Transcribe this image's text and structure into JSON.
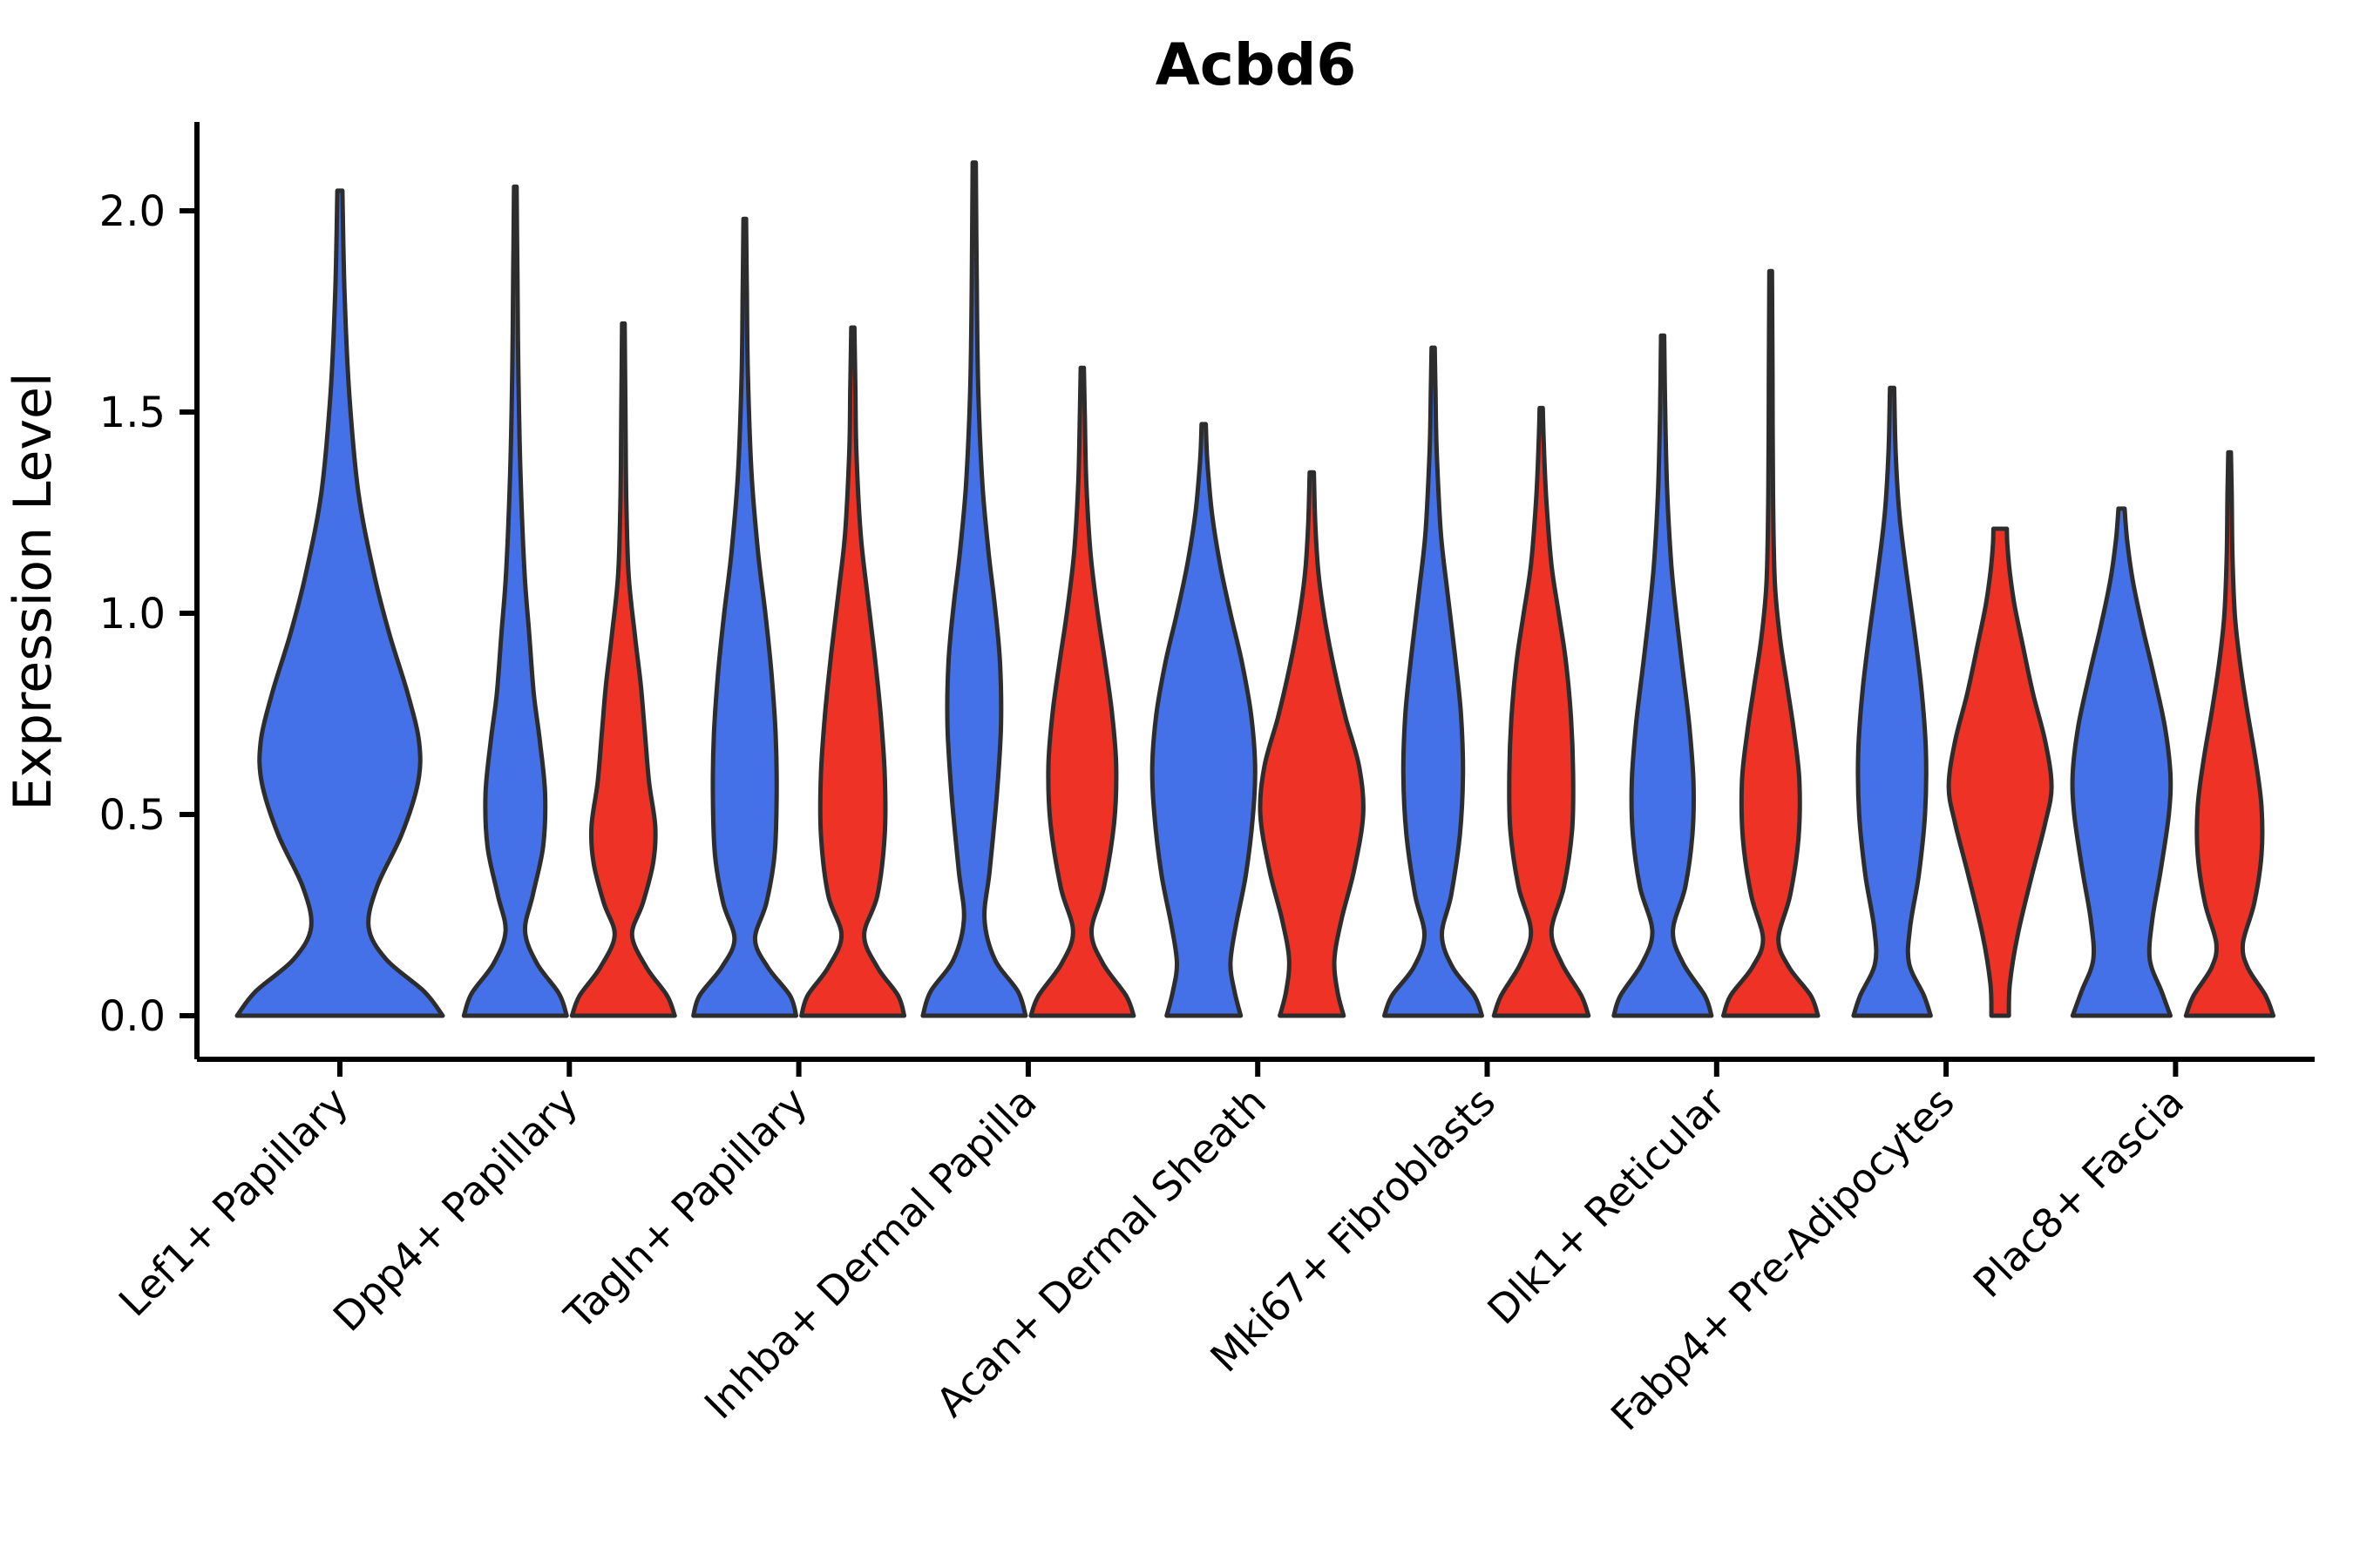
{
  "title": "Acbd6",
  "y_axis": {
    "label": "Expression Level",
    "ticks": [
      {
        "value": 2.0,
        "label": "2.0"
      },
      {
        "value": 1.5,
        "label": "1.5"
      },
      {
        "value": 1.0,
        "label": "1.0"
      },
      {
        "value": 0.5,
        "label": "0.5"
      },
      {
        "value": 0.0,
        "label": "0.0"
      }
    ]
  },
  "x_axis": {
    "categories": [
      "Lef1+ Papillary",
      "Dpp4+ Papillary",
      "Tagln+ Papillary",
      "Inhba+ Dermal Papilla",
      "Acan+ Dermal Sheath",
      "Mki67+ Fibroblasts",
      "Dlk1+ Reticular",
      "Fabp4+ Pre-Adipocytes",
      "Plac8+ Fascia"
    ]
  },
  "colors": {
    "blue": "#4470E8",
    "red": "#EE3326",
    "outline": "#2D2D2D",
    "axis": "#000000"
  },
  "chart_data": {
    "type": "violin",
    "title": "Acbd6",
    "xlabel": "",
    "ylabel": "Expression Level",
    "ylim": [
      -0.11,
      2.22
    ],
    "yticks": [
      0.0,
      0.5,
      1.0,
      1.5,
      2.0
    ],
    "grid": false,
    "legend": null,
    "categories": [
      "Lef1+ Papillary",
      "Dpp4+ Papillary",
      "Tagln+ Papillary",
      "Inhba+ Dermal Papilla",
      "Acan+ Dermal Sheath",
      "Mki67+ Fibroblasts",
      "Dlk1+ Reticular",
      "Fabp4+ Pre-Adipocytes",
      "Plac8+ Fascia"
    ],
    "series": [
      {
        "name": "blue",
        "color": "#4470E8"
      },
      {
        "name": "red",
        "color": "#EE3326"
      }
    ],
    "violins": [
      {
        "category": "Lef1+ Papillary",
        "series": "blue",
        "full_width": true,
        "max_expression": 2.05,
        "profile": [
          [
            0,
            1.0
          ],
          [
            0.06,
            0.82
          ],
          [
            0.14,
            0.45
          ],
          [
            0.22,
            0.28
          ],
          [
            0.32,
            0.36
          ],
          [
            0.45,
            0.6
          ],
          [
            0.58,
            0.76
          ],
          [
            0.68,
            0.77
          ],
          [
            0.8,
            0.66
          ],
          [
            0.95,
            0.48
          ],
          [
            1.1,
            0.33
          ],
          [
            1.3,
            0.18
          ],
          [
            1.55,
            0.09
          ],
          [
            1.8,
            0.045
          ],
          [
            2.05,
            0.025
          ]
        ]
      },
      {
        "category": "Dpp4+ Papillary",
        "series": "blue",
        "full_width": false,
        "max_expression": 2.06,
        "profile": [
          [
            0,
            1.0
          ],
          [
            0.055,
            0.85
          ],
          [
            0.13,
            0.42
          ],
          [
            0.21,
            0.19
          ],
          [
            0.3,
            0.34
          ],
          [
            0.42,
            0.54
          ],
          [
            0.55,
            0.58
          ],
          [
            0.68,
            0.48
          ],
          [
            0.8,
            0.36
          ],
          [
            0.95,
            0.27
          ],
          [
            1.1,
            0.18
          ],
          [
            1.35,
            0.1
          ],
          [
            1.6,
            0.06
          ],
          [
            1.85,
            0.04
          ],
          [
            2.06,
            0.025
          ]
        ]
      },
      {
        "category": "Dpp4+ Papillary",
        "series": "red",
        "full_width": false,
        "max_expression": 1.72,
        "profile": [
          [
            0,
            1.0
          ],
          [
            0.05,
            0.85
          ],
          [
            0.12,
            0.45
          ],
          [
            0.2,
            0.17
          ],
          [
            0.28,
            0.38
          ],
          [
            0.38,
            0.58
          ],
          [
            0.47,
            0.62
          ],
          [
            0.58,
            0.5
          ],
          [
            0.7,
            0.42
          ],
          [
            0.82,
            0.34
          ],
          [
            0.95,
            0.22
          ],
          [
            1.1,
            0.1
          ],
          [
            1.3,
            0.055
          ],
          [
            1.5,
            0.04
          ],
          [
            1.72,
            0.025
          ]
        ]
      },
      {
        "category": "Tagln+ Papillary",
        "series": "blue",
        "full_width": false,
        "max_expression": 1.98,
        "profile": [
          [
            0,
            1.0
          ],
          [
            0.05,
            0.88
          ],
          [
            0.12,
            0.45
          ],
          [
            0.19,
            0.2
          ],
          [
            0.28,
            0.42
          ],
          [
            0.4,
            0.58
          ],
          [
            0.55,
            0.62
          ],
          [
            0.7,
            0.6
          ],
          [
            0.85,
            0.52
          ],
          [
            1.0,
            0.4
          ],
          [
            1.15,
            0.26
          ],
          [
            1.35,
            0.13
          ],
          [
            1.6,
            0.06
          ],
          [
            1.8,
            0.04
          ],
          [
            1.98,
            0.025
          ]
        ]
      },
      {
        "category": "Tagln+ Papillary",
        "series": "red",
        "full_width": false,
        "max_expression": 1.71,
        "profile": [
          [
            0,
            1.0
          ],
          [
            0.05,
            0.88
          ],
          [
            0.12,
            0.48
          ],
          [
            0.2,
            0.22
          ],
          [
            0.3,
            0.48
          ],
          [
            0.45,
            0.62
          ],
          [
            0.6,
            0.62
          ],
          [
            0.75,
            0.54
          ],
          [
            0.9,
            0.42
          ],
          [
            1.05,
            0.28
          ],
          [
            1.2,
            0.15
          ],
          [
            1.4,
            0.07
          ],
          [
            1.55,
            0.05
          ],
          [
            1.71,
            0.03
          ]
        ]
      },
      {
        "category": "Inhba+ Dermal Papilla",
        "series": "blue",
        "full_width": false,
        "max_expression": 2.12,
        "profile": [
          [
            0,
            1.0
          ],
          [
            0.06,
            0.85
          ],
          [
            0.14,
            0.4
          ],
          [
            0.24,
            0.2
          ],
          [
            0.36,
            0.3
          ],
          [
            0.55,
            0.44
          ],
          [
            0.72,
            0.52
          ],
          [
            0.88,
            0.5
          ],
          [
            1.02,
            0.4
          ],
          [
            1.15,
            0.28
          ],
          [
            1.32,
            0.16
          ],
          [
            1.55,
            0.08
          ],
          [
            1.8,
            0.05
          ],
          [
            2.12,
            0.03
          ]
        ]
      },
      {
        "category": "Inhba+ Dermal Papilla",
        "series": "red",
        "full_width": false,
        "max_expression": 1.61,
        "profile": [
          [
            0,
            1.0
          ],
          [
            0.05,
            0.85
          ],
          [
            0.13,
            0.4
          ],
          [
            0.21,
            0.18
          ],
          [
            0.32,
            0.42
          ],
          [
            0.48,
            0.62
          ],
          [
            0.62,
            0.66
          ],
          [
            0.75,
            0.58
          ],
          [
            0.88,
            0.44
          ],
          [
            1.0,
            0.3
          ],
          [
            1.15,
            0.16
          ],
          [
            1.32,
            0.08
          ],
          [
            1.48,
            0.05
          ],
          [
            1.61,
            0.03
          ]
        ]
      },
      {
        "category": "Acan+ Dermal Sheath",
        "series": "blue",
        "full_width": false,
        "max_expression": 1.47,
        "profile": [
          [
            0,
            0.72
          ],
          [
            0.06,
            0.6
          ],
          [
            0.13,
            0.52
          ],
          [
            0.22,
            0.62
          ],
          [
            0.35,
            0.82
          ],
          [
            0.5,
            0.96
          ],
          [
            0.62,
            1.0
          ],
          [
            0.75,
            0.92
          ],
          [
            0.88,
            0.74
          ],
          [
            1.0,
            0.52
          ],
          [
            1.12,
            0.32
          ],
          [
            1.25,
            0.16
          ],
          [
            1.38,
            0.07
          ],
          [
            1.47,
            0.04
          ]
        ]
      },
      {
        "category": "Acan+ Dermal Sheath",
        "series": "red",
        "full_width": false,
        "max_expression": 1.35,
        "profile": [
          [
            0,
            0.62
          ],
          [
            0.06,
            0.5
          ],
          [
            0.14,
            0.44
          ],
          [
            0.24,
            0.58
          ],
          [
            0.36,
            0.82
          ],
          [
            0.5,
            1.0
          ],
          [
            0.62,
            0.92
          ],
          [
            0.74,
            0.66
          ],
          [
            0.86,
            0.44
          ],
          [
            0.98,
            0.26
          ],
          [
            1.1,
            0.13
          ],
          [
            1.22,
            0.07
          ],
          [
            1.35,
            0.04
          ]
        ]
      },
      {
        "category": "Mki67+ Fibroblasts",
        "series": "blue",
        "full_width": false,
        "max_expression": 1.66,
        "profile": [
          [
            0,
            0.95
          ],
          [
            0.05,
            0.8
          ],
          [
            0.12,
            0.38
          ],
          [
            0.2,
            0.17
          ],
          [
            0.3,
            0.35
          ],
          [
            0.45,
            0.52
          ],
          [
            0.6,
            0.58
          ],
          [
            0.75,
            0.54
          ],
          [
            0.9,
            0.42
          ],
          [
            1.05,
            0.28
          ],
          [
            1.2,
            0.15
          ],
          [
            1.4,
            0.07
          ],
          [
            1.55,
            0.045
          ],
          [
            1.66,
            0.03
          ]
        ]
      },
      {
        "category": "Mki67+ Fibroblasts",
        "series": "red",
        "full_width": false,
        "max_expression": 1.51,
        "profile": [
          [
            0,
            0.92
          ],
          [
            0.05,
            0.78
          ],
          [
            0.13,
            0.4
          ],
          [
            0.21,
            0.2
          ],
          [
            0.32,
            0.44
          ],
          [
            0.46,
            0.6
          ],
          [
            0.6,
            0.62
          ],
          [
            0.74,
            0.58
          ],
          [
            0.88,
            0.48
          ],
          [
            1.0,
            0.34
          ],
          [
            1.12,
            0.2
          ],
          [
            1.28,
            0.1
          ],
          [
            1.42,
            0.05
          ],
          [
            1.51,
            0.03
          ]
        ]
      },
      {
        "category": "Dlk1+ Reticular",
        "series": "blue",
        "full_width": false,
        "max_expression": 1.69,
        "profile": [
          [
            0,
            0.95
          ],
          [
            0.05,
            0.82
          ],
          [
            0.13,
            0.4
          ],
          [
            0.21,
            0.2
          ],
          [
            0.32,
            0.44
          ],
          [
            0.45,
            0.58
          ],
          [
            0.58,
            0.6
          ],
          [
            0.72,
            0.52
          ],
          [
            0.85,
            0.4
          ],
          [
            0.98,
            0.28
          ],
          [
            1.12,
            0.17
          ],
          [
            1.3,
            0.09
          ],
          [
            1.5,
            0.05
          ],
          [
            1.69,
            0.03
          ]
        ]
      },
      {
        "category": "Dlk1+ Reticular",
        "series": "red",
        "full_width": false,
        "max_expression": 1.85,
        "profile": [
          [
            0,
            0.92
          ],
          [
            0.05,
            0.78
          ],
          [
            0.12,
            0.36
          ],
          [
            0.19,
            0.15
          ],
          [
            0.3,
            0.38
          ],
          [
            0.44,
            0.54
          ],
          [
            0.58,
            0.56
          ],
          [
            0.7,
            0.46
          ],
          [
            0.82,
            0.32
          ],
          [
            0.94,
            0.18
          ],
          [
            1.08,
            0.08
          ],
          [
            1.3,
            0.045
          ],
          [
            1.6,
            0.035
          ],
          [
            1.85,
            0.025
          ]
        ]
      },
      {
        "category": "Fabp4+ Pre-Adipocytes",
        "series": "blue",
        "full_width": false,
        "max_expression": 1.56,
        "profile": [
          [
            0,
            0.75
          ],
          [
            0.05,
            0.62
          ],
          [
            0.13,
            0.33
          ],
          [
            0.22,
            0.35
          ],
          [
            0.35,
            0.52
          ],
          [
            0.5,
            0.64
          ],
          [
            0.65,
            0.66
          ],
          [
            0.8,
            0.58
          ],
          [
            0.95,
            0.44
          ],
          [
            1.1,
            0.28
          ],
          [
            1.25,
            0.14
          ],
          [
            1.4,
            0.07
          ],
          [
            1.56,
            0.04
          ]
        ]
      },
      {
        "category": "Fabp4+ Pre-Adipocytes",
        "series": "red",
        "full_width": false,
        "max_expression": 1.21,
        "profile": [
          [
            0,
            0.17
          ],
          [
            0.08,
            0.19
          ],
          [
            0.2,
            0.34
          ],
          [
            0.35,
            0.62
          ],
          [
            0.48,
            0.88
          ],
          [
            0.57,
            1.0
          ],
          [
            0.68,
            0.88
          ],
          [
            0.8,
            0.64
          ],
          [
            0.92,
            0.44
          ],
          [
            1.02,
            0.28
          ],
          [
            1.1,
            0.19
          ],
          [
            1.17,
            0.14
          ],
          [
            1.21,
            0.13
          ]
        ]
      },
      {
        "category": "Plac8+ Fascia",
        "series": "blue",
        "full_width": false,
        "max_expression": 1.26,
        "profile": [
          [
            0,
            0.95
          ],
          [
            0.06,
            0.78
          ],
          [
            0.14,
            0.55
          ],
          [
            0.24,
            0.6
          ],
          [
            0.36,
            0.76
          ],
          [
            0.5,
            0.92
          ],
          [
            0.6,
            0.95
          ],
          [
            0.72,
            0.84
          ],
          [
            0.85,
            0.62
          ],
          [
            0.97,
            0.4
          ],
          [
            1.08,
            0.22
          ],
          [
            1.18,
            0.11
          ],
          [
            1.26,
            0.06
          ]
        ]
      },
      {
        "category": "Plac8+ Fascia",
        "series": "red",
        "full_width": false,
        "max_expression": 1.4,
        "profile": [
          [
            0,
            0.85
          ],
          [
            0.05,
            0.7
          ],
          [
            0.12,
            0.35
          ],
          [
            0.18,
            0.26
          ],
          [
            0.28,
            0.48
          ],
          [
            0.4,
            0.62
          ],
          [
            0.52,
            0.62
          ],
          [
            0.64,
            0.5
          ],
          [
            0.76,
            0.34
          ],
          [
            0.88,
            0.2
          ],
          [
            1.0,
            0.1
          ],
          [
            1.15,
            0.055
          ],
          [
            1.3,
            0.04
          ],
          [
            1.4,
            0.025
          ]
        ]
      }
    ]
  }
}
